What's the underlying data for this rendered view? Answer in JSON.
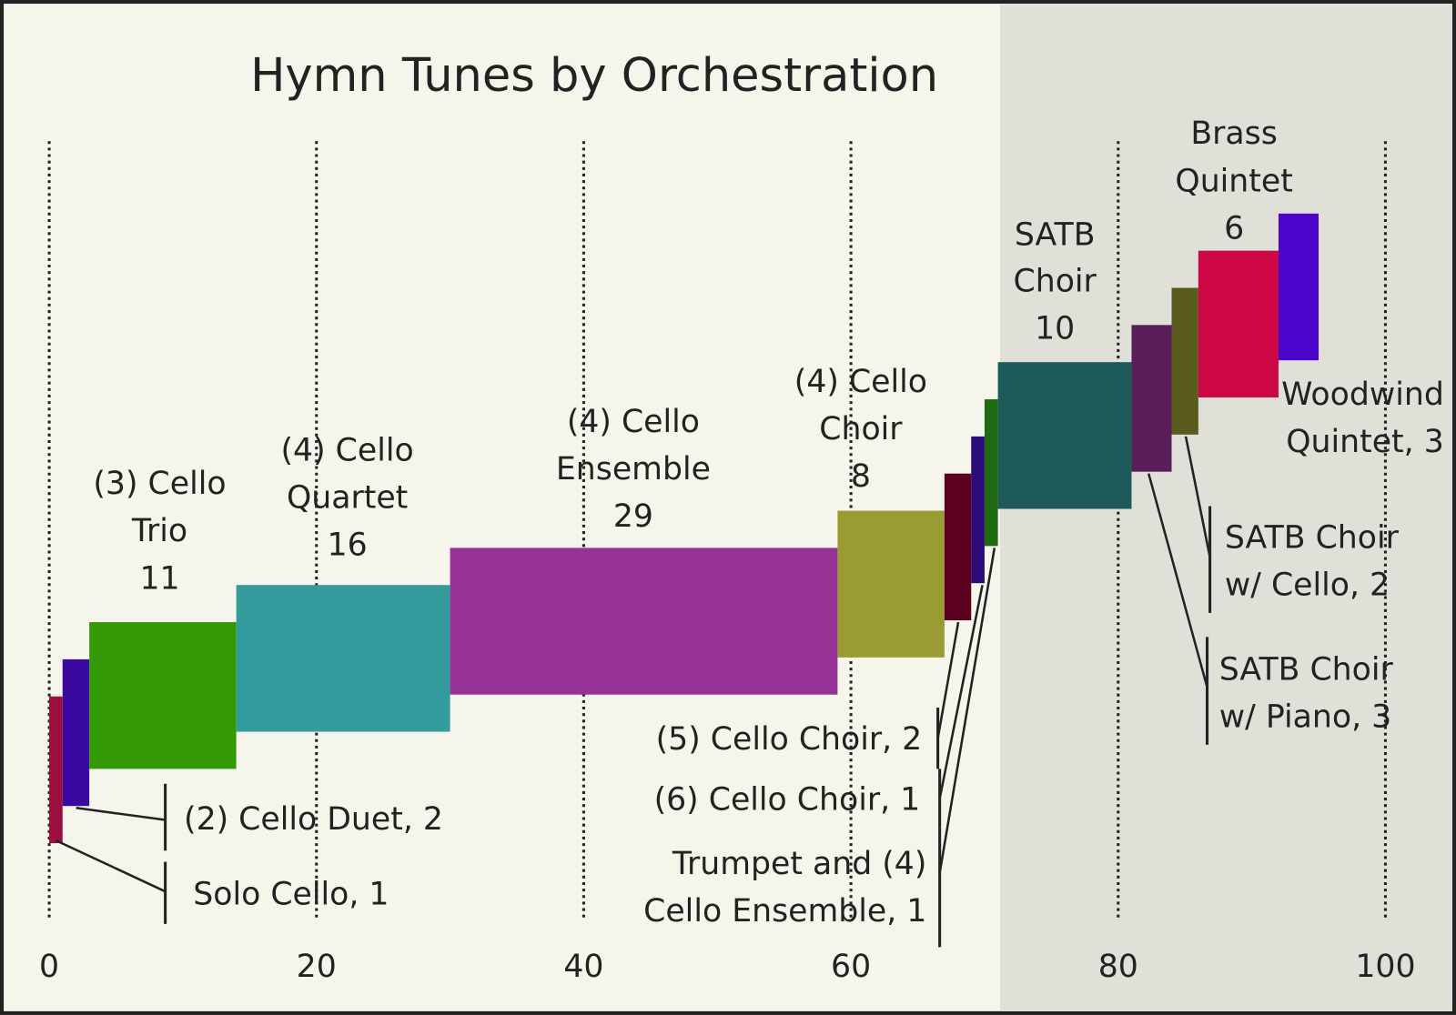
{
  "chart_data": {
    "type": "waterfall",
    "title": "Hymn Tunes by Orchestration",
    "values": [
      1,
      2,
      11,
      16,
      29,
      8,
      2,
      1,
      1,
      10,
      3,
      2,
      6,
      3
    ],
    "value_labels": [
      [
        "Solo Cello, 1"
      ],
      [
        "(2) Cello Duet, 2"
      ],
      [
        "(3) Cello",
        "Trio",
        "11"
      ],
      [
        "(4) Cello",
        "Quartet",
        "16"
      ],
      [
        "(4) Cello",
        "Ensemble",
        "29"
      ],
      [
        "(4) Cello",
        "Choir",
        "8"
      ],
      [
        "(5) Cello Choir, 2"
      ],
      [
        "(6) Cello Choir, 1"
      ],
      [
        "Trumpet and (4)",
        "Cello Ensemble, 1"
      ],
      [
        "SATB",
        "Choir",
        "10"
      ],
      [
        "SATB Choir",
        "w/ Piano, 3"
      ],
      [
        "SATB Choir",
        "w/ Cello, 2"
      ],
      [
        "Brass",
        "Quintet",
        "6"
      ],
      [
        "Woodwind",
        "Quintet, 3"
      ]
    ],
    "colors": [
      "#9b0f3e",
      "#3a0aa0",
      "#339a05",
      "#339b9b",
      "#963296",
      "#9a9b33",
      "#5d0020",
      "#2c0a78",
      "#1f6a10",
      "#1f5a5a",
      "#5a1f5a",
      "#5a5a1f",
      "#cc0744",
      "#4b05cc"
    ],
    "xlim": [
      0,
      100
    ],
    "xticks": [
      0,
      20,
      40,
      60,
      80,
      100
    ],
    "grid": true
  }
}
